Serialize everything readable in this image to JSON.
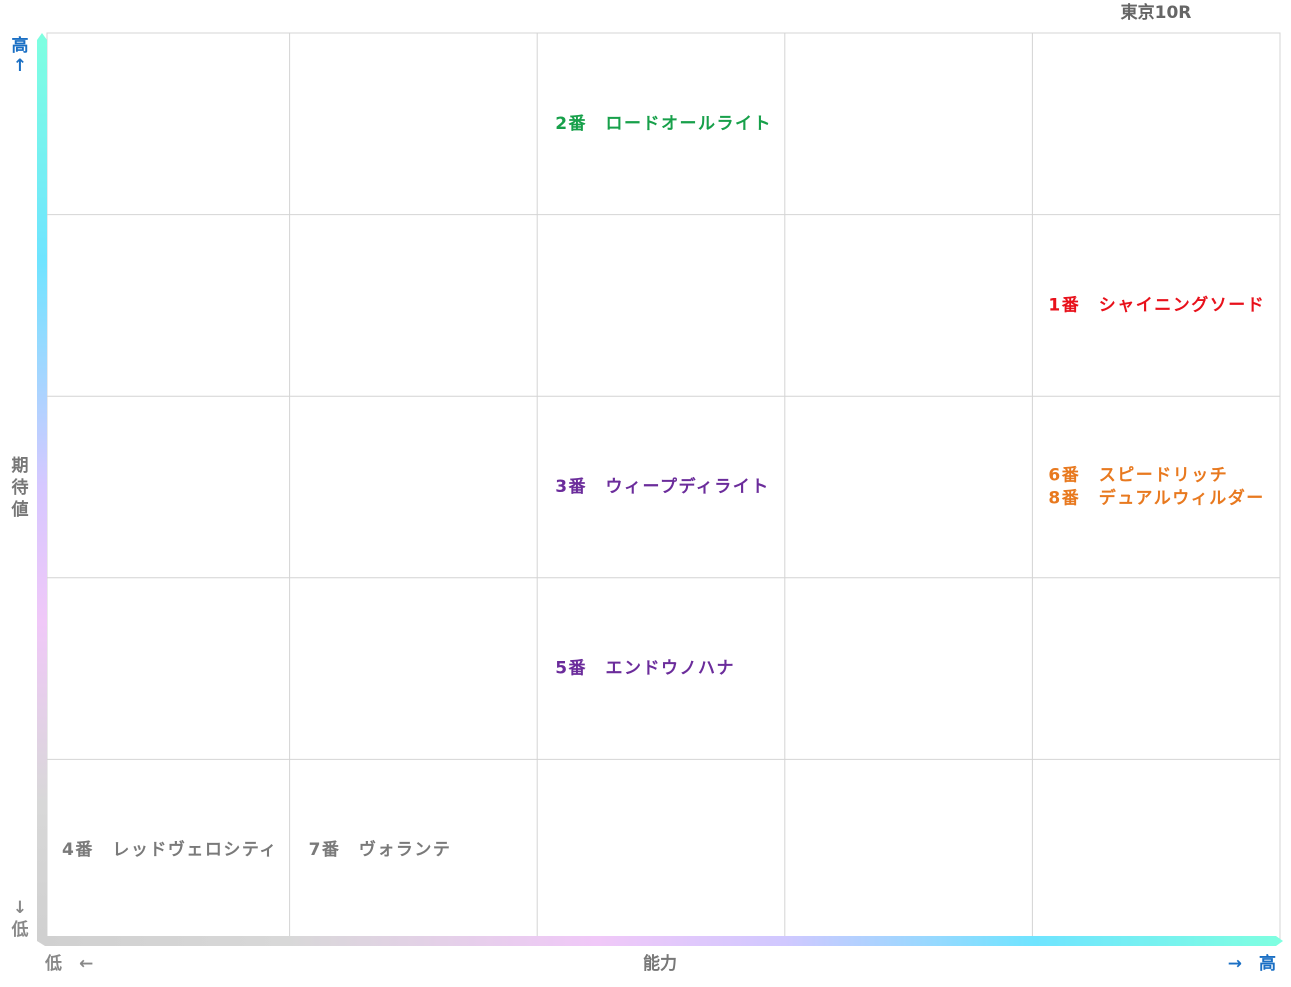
{
  "header": {
    "title": "東京10R"
  },
  "y_axis": {
    "label": "期待値",
    "high": "高",
    "high_arrow": "↑",
    "low_arrow": "↓",
    "low": "低"
  },
  "x_axis": {
    "label": "能力",
    "low": "低　←",
    "high": "→　高"
  },
  "grid": {
    "rows": [
      [
        [],
        [],
        [
          {
            "label": "2番　ロードオールライト",
            "color": "#17a04a"
          }
        ],
        [],
        []
      ],
      [
        [],
        [],
        [],
        [],
        [
          {
            "label": "1番　シャイニングソード",
            "color": "#e8111b"
          }
        ]
      ],
      [
        [],
        [],
        [
          {
            "label": "3番　ウィープディライト",
            "color": "#6b2c9b"
          }
        ],
        [],
        [
          {
            "label": "6番　スピードリッチ",
            "color": "#e8791f"
          },
          {
            "label": "8番　デュアルウィルダー",
            "color": "#e8791f"
          }
        ]
      ],
      [
        [],
        [],
        [
          {
            "label": "5番　エンドウノハナ",
            "color": "#6b2c9b"
          }
        ],
        [],
        []
      ],
      [
        [
          {
            "label": "4番　レッドヴェロシティ",
            "color": "#7a7a7a"
          }
        ],
        [
          {
            "label": "7番　ヴォランテ",
            "color": "#7a7a7a"
          }
        ],
        [],
        [],
        []
      ]
    ]
  }
}
